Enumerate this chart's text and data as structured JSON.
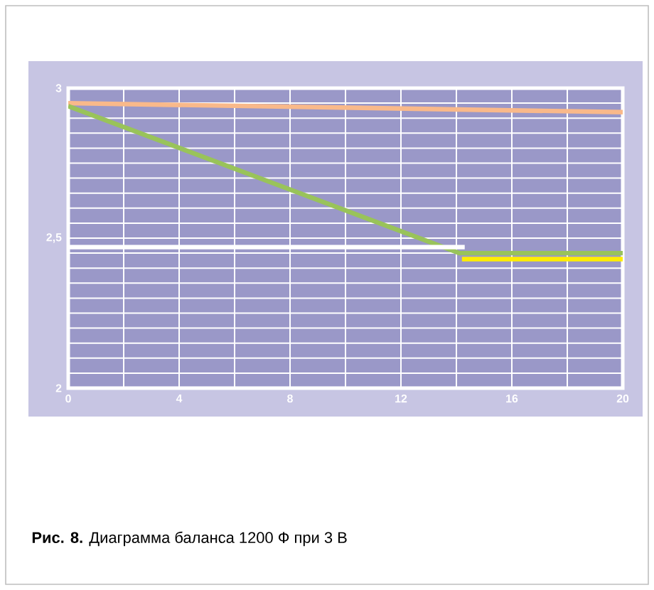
{
  "chart_data": {
    "type": "line",
    "annotations": [
      "**Рис. 8.** Диаграмма баланса 1200 Ф при 3 В"
    ],
    "xlim": [
      0,
      20
    ],
    "ylim": [
      2,
      3
    ],
    "xticks": [
      0,
      {
        "value": 2,
        "label": null
      },
      4,
      {
        "value": 6,
        "label": null
      },
      8,
      {
        "value": 10,
        "label": null
      },
      12,
      {
        "value": 14,
        "label": null
      },
      16,
      {
        "value": 18,
        "label": null
      },
      20
    ],
    "yticks": [
      2,
      {
        "value": 2.05,
        "label": null
      },
      {
        "value": 2.1,
        "label": null
      },
      {
        "value": 2.15,
        "label": null
      },
      {
        "value": 2.2,
        "label": null
      },
      {
        "value": 2.25,
        "label": null
      },
      {
        "value": 2.3,
        "label": null
      },
      {
        "value": 2.35,
        "label": null
      },
      {
        "value": 2.4,
        "label": null
      },
      {
        "value": 2.45,
        "label": null
      },
      {
        "value": 2.5,
        "label": "2,5"
      },
      {
        "value": 2.55,
        "label": null
      },
      {
        "value": 2.6,
        "label": null
      },
      {
        "value": 2.65,
        "label": null
      },
      {
        "value": 2.7,
        "label": null
      },
      {
        "value": 2.75,
        "label": null
      },
      {
        "value": 2.8,
        "label": null
      },
      {
        "value": 2.85,
        "label": null
      },
      {
        "value": 2.9,
        "label": null
      },
      {
        "value": 2.95,
        "label": null
      },
      3
    ],
    "grid": true,
    "marker": "none",
    "line_style": "solid",
    "series": [
      {
        "color": "#f9b98a",
        "x": [
          0,
          20
        ],
        "values": [
          2.95,
          2.92
        ]
      },
      {
        "color": "#99c35a",
        "x": [
          0,
          14.1,
          20
        ],
        "values": [
          2.94,
          2.45,
          2.45
        ]
      },
      {
        "color": "#ffee00",
        "x": [
          14.2,
          20
        ],
        "values": [
          2.43,
          2.43
        ]
      },
      {
        "color": "#ffffff",
        "x": [
          0,
          14.3
        ],
        "values": [
          2.47,
          2.47
        ]
      }
    ]
  }
}
